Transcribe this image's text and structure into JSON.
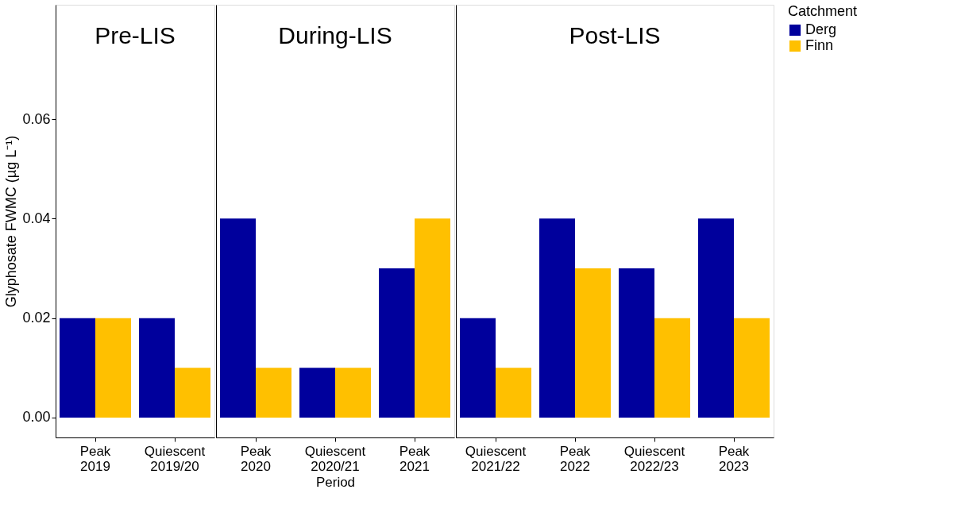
{
  "chart_data": [
    {
      "type": "bar",
      "title": "Pre-LIS",
      "ylabel": "Glyphosate FWMC (µg L⁻¹)",
      "categories": [
        "Peak 2019",
        "Quiescent 2019/20"
      ],
      "series": [
        {
          "color": "#00009c",
          "values": [
            0.02,
            0.02
          ]
        },
        {
          "color": "#ffc000",
          "values": [
            0.02,
            0.01
          ]
        }
      ],
      "ylim": [
        -0.004,
        0.083
      ],
      "yticks": [
        {
          "value": 0,
          "label": "0.00"
        },
        {
          "value": 0.02,
          "label": "0.02"
        },
        {
          "value": 0.04,
          "label": "0.04"
        },
        {
          "value": 0.06,
          "label": "0.06"
        }
      ],
      "grid": false
    },
    {
      "type": "bar",
      "title": "During-LIS",
      "xlabel": "Period",
      "categories": [
        "Peak 2020",
        "Quiescent 2020/21",
        "Peak 2021"
      ],
      "series": [
        {
          "color": "#00009c",
          "values": [
            0.04,
            0.01,
            0.03
          ]
        },
        {
          "color": "#ffc000",
          "values": [
            0.01,
            0.01,
            0.04
          ]
        }
      ],
      "ylim": [
        -0.004,
        0.083
      ],
      "tick_labels": "x",
      "grid": false
    },
    {
      "type": "bar",
      "title": "Post-LIS",
      "legend_title": "Catchment",
      "categories": [
        "Quiescent 2021/22",
        "Peak 2022",
        "Quiescent 2022/23",
        "Peak 2023"
      ],
      "series": [
        {
          "name": "Derg",
          "color": "#00009c",
          "values": [
            0.02,
            0.04,
            0.03,
            0.04
          ]
        },
        {
          "name": "Finn",
          "color": "#ffc000",
          "values": [
            0.01,
            0.03,
            0.02,
            0.02
          ]
        }
      ],
      "ylim": [
        -0.004,
        0.083
      ],
      "tick_labels": "x",
      "grid": false,
      "legend": "right"
    }
  ]
}
